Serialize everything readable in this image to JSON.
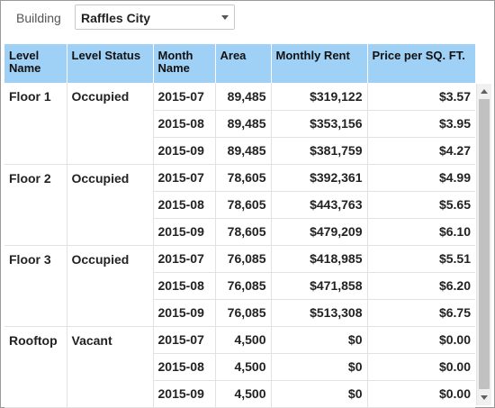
{
  "filter": {
    "label": "Building",
    "selected": "Raffles City"
  },
  "table": {
    "headers": [
      "Level Name",
      "Level Status",
      "Month Name",
      "Area",
      "Monthly Rent",
      "Price per SQ. FT."
    ],
    "groups": [
      {
        "level": "Floor 1",
        "status": "Occupied",
        "rows": [
          {
            "month": "2015-07",
            "area": "89,485",
            "rent": "$319,122",
            "price": "$3.57"
          },
          {
            "month": "2015-08",
            "area": "89,485",
            "rent": "$353,156",
            "price": "$3.95"
          },
          {
            "month": "2015-09",
            "area": "89,485",
            "rent": "$381,759",
            "price": "$4.27"
          }
        ]
      },
      {
        "level": "Floor 2",
        "status": "Occupied",
        "rows": [
          {
            "month": "2015-07",
            "area": "78,605",
            "rent": "$392,361",
            "price": "$4.99"
          },
          {
            "month": "2015-08",
            "area": "78,605",
            "rent": "$443,763",
            "price": "$5.65"
          },
          {
            "month": "2015-09",
            "area": "78,605",
            "rent": "$479,209",
            "price": "$6.10"
          }
        ]
      },
      {
        "level": "Floor 3",
        "status": "Occupied",
        "rows": [
          {
            "month": "2015-07",
            "area": "76,085",
            "rent": "$418,985",
            "price": "$5.51"
          },
          {
            "month": "2015-08",
            "area": "76,085",
            "rent": "$471,858",
            "price": "$6.20"
          },
          {
            "month": "2015-09",
            "area": "76,085",
            "rent": "$513,308",
            "price": "$6.75"
          }
        ]
      },
      {
        "level": "Rooftop",
        "status": "Vacant",
        "rows": [
          {
            "month": "2015-07",
            "area": "4,500",
            "rent": "$0",
            "price": "$0.00"
          },
          {
            "month": "2015-08",
            "area": "4,500",
            "rent": "$0",
            "price": "$0.00"
          },
          {
            "month": "2015-09",
            "area": "4,500",
            "rent": "$0",
            "price": "$0.00"
          }
        ]
      }
    ]
  },
  "colors": {
    "header_bg": "#9fd0f6",
    "grid_line": "#e2e2e2"
  },
  "icons": {
    "dropdown": "chevron-down-icon",
    "scroll_up": "arrow-up-icon",
    "scroll_down": "arrow-down-icon"
  }
}
